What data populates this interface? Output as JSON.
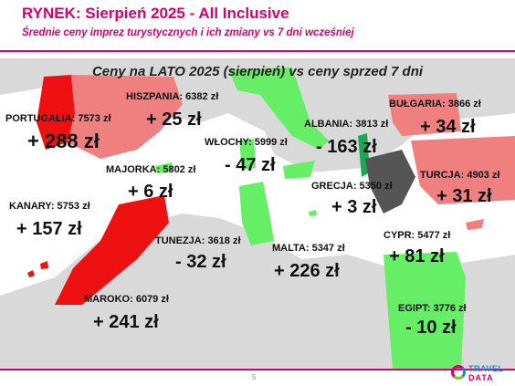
{
  "header": {
    "title": "RYNEK: Sierpień 2025 - All Inclusive",
    "subtitle": "Średnie ceny imprez turystycznych i ich zmiany vs 7 dni wcześniej"
  },
  "map": {
    "title": "Ceny na LATO 2025 (sierpień) vs ceny sprzed 7 dni",
    "destinations": [
      {
        "label": "PORTUGALIA: 7573 zł",
        "change": "+ 288 zł"
      },
      {
        "label": "HISZPANIA: 6382 zł",
        "change": "+ 25 zł"
      },
      {
        "label": "MAJORKA: 5802 zł",
        "change": "+ 6 zł"
      },
      {
        "label": "WŁOCHY: 5999 zł",
        "change": "- 47 zł"
      },
      {
        "label": "ALBANIA: 3813 zł",
        "change": "- 163 zł"
      },
      {
        "label": "BUŁGARIA: 3866 zł",
        "change": "+ 34 zł"
      },
      {
        "label": "TURCJA: 4903 zł",
        "change": "+ 31 zł"
      },
      {
        "label": "GRECJA: 5350 zł",
        "change": "+ 3 zł"
      },
      {
        "label": "KANARY: 5753 zł",
        "change": "+ 157 zł"
      },
      {
        "label": "TUNEZJA: 3618 zł",
        "change": "- 32 zł"
      },
      {
        "label": "MALTA: 5347 zł",
        "change": "+ 226 zł"
      },
      {
        "label": "CYPR: 5477 zł",
        "change": "+ 81 zł"
      },
      {
        "label": "MAROKO: 6079 zł",
        "change": "+ 241 zł"
      },
      {
        "label": "EGIPT: 3776 zł",
        "change": "- 10 zł"
      }
    ],
    "colors": {
      "increase_strong": "#ee1111",
      "increase_mild": "#f08080",
      "decrease": "#66ee66",
      "decrease_strong": "#1aaa55",
      "neutral": "#555555",
      "land": "#d9d9d9"
    }
  },
  "footer": {
    "page_number": "5",
    "logo_line1": "TRAVEL",
    "logo_line2": "DATA"
  }
}
